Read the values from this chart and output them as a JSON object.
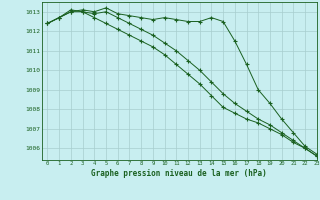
{
  "title": "Graphe pression niveau de la mer (hPa)",
  "background_color": "#c8eef0",
  "grid_color": "#a8cece",
  "line_color": "#1a6020",
  "xlim": [
    -0.5,
    23
  ],
  "ylim": [
    1005.4,
    1013.5
  ],
  "yticks": [
    1006,
    1007,
    1008,
    1009,
    1010,
    1011,
    1012,
    1013
  ],
  "xticks": [
    0,
    1,
    2,
    3,
    4,
    5,
    6,
    7,
    8,
    9,
    10,
    11,
    12,
    13,
    14,
    15,
    16,
    17,
    18,
    19,
    20,
    21,
    22,
    23
  ],
  "series1": [
    1012.4,
    1012.7,
    1013.0,
    1013.1,
    1013.0,
    1013.2,
    1012.9,
    1012.8,
    1012.7,
    1012.6,
    1012.7,
    1012.6,
    1012.5,
    1012.5,
    1012.7,
    1012.5,
    1011.5,
    1010.3,
    1009.0,
    1008.3,
    1007.5,
    1006.8,
    1006.1,
    1005.7
  ],
  "series2": [
    1012.4,
    1012.7,
    1013.1,
    1013.0,
    1012.7,
    1012.4,
    1012.1,
    1011.8,
    1011.5,
    1011.2,
    1010.8,
    1010.3,
    1009.8,
    1009.3,
    1008.7,
    1008.1,
    1007.8,
    1007.5,
    1007.3,
    1007.0,
    1006.7,
    1006.3,
    1006.0,
    1005.6
  ],
  "series3": [
    1012.4,
    1012.7,
    1013.0,
    1013.0,
    1012.9,
    1013.0,
    1012.7,
    1012.4,
    1012.1,
    1011.8,
    1011.4,
    1011.0,
    1010.5,
    1010.0,
    1009.4,
    1008.8,
    1008.3,
    1007.9,
    1007.5,
    1007.2,
    1006.8,
    1006.4,
    1006.0,
    1005.6
  ]
}
